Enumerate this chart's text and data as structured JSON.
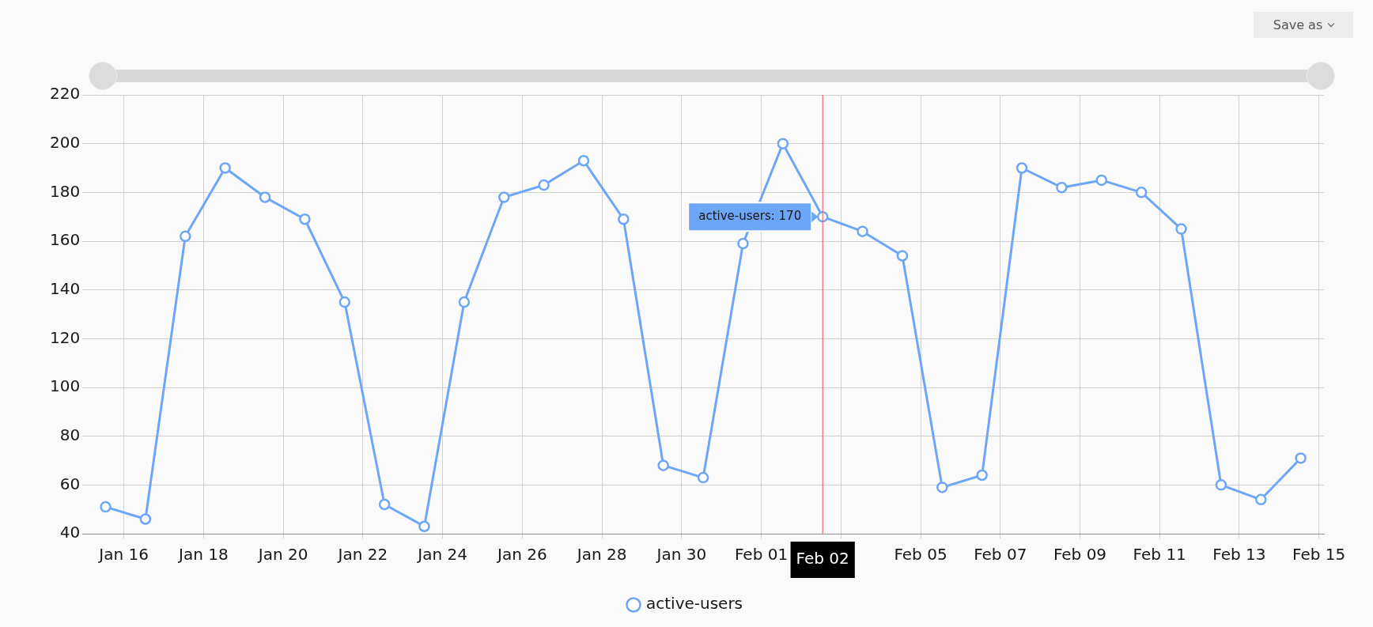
{
  "chart_data": {
    "type": "line",
    "x": [
      "--01-15T13:00",
      "--01-16T13:00",
      "--01-17T13:00",
      "--01-18T13:00",
      "--01-19T13:00",
      "--01-20T13:00",
      "--01-21T13:00",
      "--01-22T13:00",
      "--01-23T13:00",
      "--01-24T13:00",
      "--01-25T13:00",
      "--01-26T13:00",
      "--01-27T13:00",
      "--01-28T13:00",
      "--01-29T13:00",
      "--01-30T13:00",
      "--01-31T13:00",
      "--02-01T13:00",
      "--02-02T13:00",
      "--02-03T13:00",
      "--02-04T13:00",
      "--02-05T13:00",
      "--02-06T13:00",
      "--02-07T13:00",
      "--02-08T13:00",
      "--02-09T13:00",
      "--02-10T13:00",
      "--02-11T13:00",
      "--02-12T13:00",
      "--02-13T13:00",
      "--02-14T13:00"
    ],
    "series": [
      {
        "name": "active-users",
        "color": "#6ea6f7",
        "values": [
          51,
          46,
          162,
          190,
          178,
          169,
          135,
          52,
          43,
          135,
          178,
          183,
          193,
          169,
          68,
          63,
          159,
          200,
          170,
          164,
          154,
          59,
          64,
          190,
          182,
          185,
          180,
          165,
          60,
          54,
          71
        ]
      }
    ],
    "xlim": [
      "--01-14T23:00",
      "--02-15T03:00"
    ],
    "xticks": [
      {
        "value": "--01-16",
        "label": "Jan 16"
      },
      {
        "value": "--01-18",
        "label": "Jan 18"
      },
      {
        "value": "--01-20",
        "label": "Jan 20"
      },
      {
        "value": "--01-22",
        "label": "Jan 22"
      },
      {
        "value": "--01-24",
        "label": "Jan 24"
      },
      {
        "value": "--01-26",
        "label": "Jan 26"
      },
      {
        "value": "--01-28",
        "label": "Jan 28"
      },
      {
        "value": "--01-30",
        "label": "Jan 30"
      },
      {
        "value": "--02-01",
        "label": "Feb 01"
      },
      {
        "value": "--02-03",
        "label": null
      },
      {
        "value": "--02-05",
        "label": "Feb 05"
      },
      {
        "value": "--02-07",
        "label": "Feb 07"
      },
      {
        "value": "--02-09",
        "label": "Feb 09"
      },
      {
        "value": "--02-11",
        "label": "Feb 11"
      },
      {
        "value": "--02-13",
        "label": "Feb 13"
      },
      {
        "value": "--02-15",
        "label": "Feb 15"
      }
    ],
    "ylim": [
      40,
      220
    ],
    "yticks": [
      40,
      60,
      80,
      100,
      120,
      140,
      160,
      180,
      200,
      220
    ],
    "grid": true,
    "legend": "bottom",
    "marker": "circle",
    "line_style": "solid",
    "ref_lines": [
      {
        "axis": "x",
        "value": "--02-02T13:00",
        "label": "Feb 02",
        "color": "#fa4d56"
      }
    ],
    "annotations": [
      {
        "text": "active-users: 170",
        "x": "--02-02T13:00",
        "y": 170
      },
      "Save as"
    ]
  }
}
